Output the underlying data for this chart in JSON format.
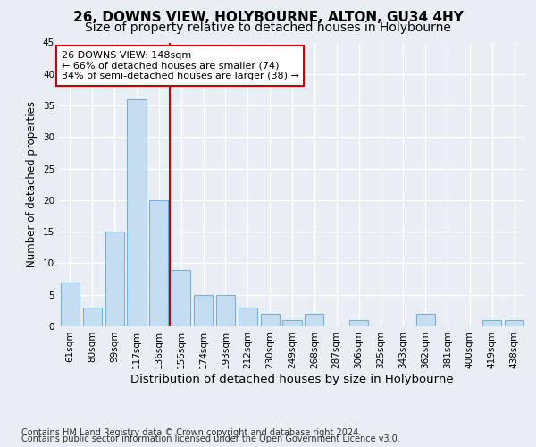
{
  "title": "26, DOWNS VIEW, HOLYBOURNE, ALTON, GU34 4HY",
  "subtitle": "Size of property relative to detached houses in Holybourne",
  "xlabel": "Distribution of detached houses by size in Holybourne",
  "ylabel": "Number of detached properties",
  "categories": [
    "61sqm",
    "80sqm",
    "99sqm",
    "117sqm",
    "136sqm",
    "155sqm",
    "174sqm",
    "193sqm",
    "212sqm",
    "230sqm",
    "249sqm",
    "268sqm",
    "287sqm",
    "306sqm",
    "325sqm",
    "343sqm",
    "362sqm",
    "381sqm",
    "400sqm",
    "419sqm",
    "438sqm"
  ],
  "values": [
    7,
    3,
    15,
    36,
    20,
    9,
    5,
    5,
    3,
    2,
    1,
    2,
    0,
    1,
    0,
    0,
    2,
    0,
    0,
    1,
    1
  ],
  "bar_color": "#c5ddf0",
  "bar_edge_color": "#7ab0d4",
  "vline_x_idx": 4,
  "vline_color": "#cc0000",
  "annotation_text": "26 DOWNS VIEW: 148sqm\n← 66% of detached houses are smaller (74)\n34% of semi-detached houses are larger (38) →",
  "annotation_box_facecolor": "#ffffff",
  "annotation_box_edgecolor": "#cc0000",
  "ylim": [
    0,
    45
  ],
  "yticks": [
    0,
    5,
    10,
    15,
    20,
    25,
    30,
    35,
    40,
    45
  ],
  "footer_line1": "Contains HM Land Registry data © Crown copyright and database right 2024.",
  "footer_line2": "Contains public sector information licensed under the Open Government Licence v3.0.",
  "bg_color": "#e8eef4",
  "plot_bg_color": "#e8eef4",
  "grid_color": "#ffffff",
  "title_fontsize": 11,
  "subtitle_fontsize": 10,
  "xlabel_fontsize": 9.5,
  "ylabel_fontsize": 8.5,
  "tick_fontsize": 7.5,
  "annot_fontsize": 8,
  "footer_fontsize": 7
}
